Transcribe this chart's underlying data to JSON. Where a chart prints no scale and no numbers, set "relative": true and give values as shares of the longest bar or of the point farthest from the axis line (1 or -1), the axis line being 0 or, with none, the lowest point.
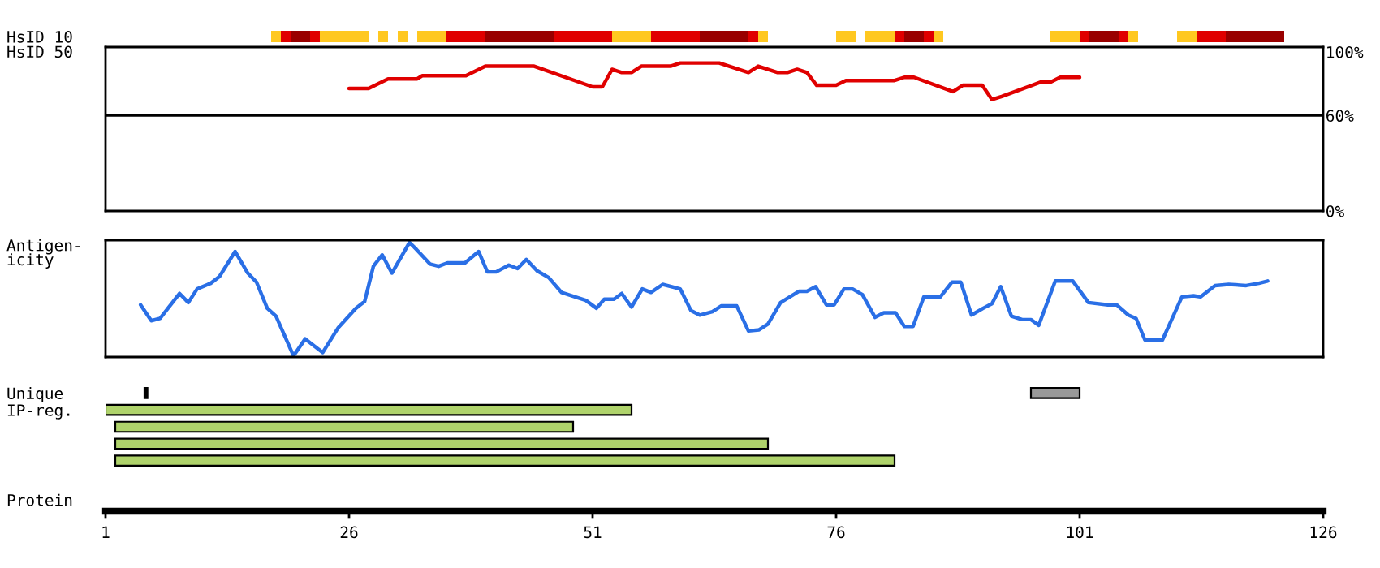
{
  "chart_data": [
    {
      "type": "bar",
      "orientation": "horizontal",
      "categories": [
        "HsID 10"
      ],
      "xlim": [
        1,
        126
      ],
      "tick_labels": "y",
      "series": [
        {
          "color": "#ffc820",
          "base": [
            18
          ],
          "values": [
            1
          ]
        },
        {
          "color": "#e00000",
          "base": [
            19
          ],
          "values": [
            1
          ]
        },
        {
          "color": "#990000",
          "base": [
            20
          ],
          "values": [
            2
          ]
        },
        {
          "color": "#e00000",
          "base": [
            22
          ],
          "values": [
            1
          ]
        },
        {
          "color": "#ffc820",
          "base": [
            23
          ],
          "values": [
            5
          ]
        },
        {
          "color": "#ffc820",
          "base": [
            29
          ],
          "values": [
            1
          ]
        },
        {
          "color": "#ffc820",
          "base": [
            31
          ],
          "values": [
            1
          ]
        },
        {
          "color": "#ffc820",
          "base": [
            33
          ],
          "values": [
            3
          ]
        },
        {
          "color": "#e00000",
          "base": [
            36
          ],
          "values": [
            4
          ]
        },
        {
          "color": "#990000",
          "base": [
            40
          ],
          "values": [
            7
          ]
        },
        {
          "color": "#e00000",
          "base": [
            47
          ],
          "values": [
            6
          ]
        },
        {
          "color": "#ffc820",
          "base": [
            53
          ],
          "values": [
            4
          ]
        },
        {
          "color": "#e00000",
          "base": [
            57
          ],
          "values": [
            5
          ]
        },
        {
          "color": "#990000",
          "base": [
            62
          ],
          "values": [
            5
          ]
        },
        {
          "color": "#e00000",
          "base": [
            67
          ],
          "values": [
            1
          ]
        },
        {
          "color": "#ffc820",
          "base": [
            68
          ],
          "values": [
            1
          ]
        },
        {
          "color": "#ffc820",
          "base": [
            76
          ],
          "values": [
            2
          ]
        },
        {
          "color": "#ffc820",
          "base": [
            79
          ],
          "values": [
            3
          ]
        },
        {
          "color": "#e00000",
          "base": [
            82
          ],
          "values": [
            1
          ]
        },
        {
          "color": "#990000",
          "base": [
            83
          ],
          "values": [
            2
          ]
        },
        {
          "color": "#e00000",
          "base": [
            85
          ],
          "values": [
            1
          ]
        },
        {
          "color": "#ffc820",
          "base": [
            86
          ],
          "values": [
            1
          ]
        },
        {
          "color": "#ffc820",
          "base": [
            98
          ],
          "values": [
            3
          ]
        },
        {
          "color": "#e00000",
          "base": [
            101
          ],
          "values": [
            1
          ]
        },
        {
          "color": "#990000",
          "base": [
            102
          ],
          "values": [
            3
          ]
        },
        {
          "color": "#e00000",
          "base": [
            105
          ],
          "values": [
            1
          ]
        },
        {
          "color": "#ffc820",
          "base": [
            106
          ],
          "values": [
            1
          ]
        },
        {
          "color": "#ffc820",
          "base": [
            111
          ],
          "values": [
            2
          ]
        },
        {
          "color": "#e00000",
          "base": [
            113
          ],
          "values": [
            3
          ]
        },
        {
          "color": "#990000",
          "base": [
            116
          ],
          "values": [
            6
          ]
        }
      ]
    },
    {
      "type": "line",
      "ylabel": "HsID 50",
      "xlim": [
        1,
        126
      ],
      "ylim": [
        0,
        103
      ],
      "yticks": [
        {
          "value": 0,
          "label": "0%"
        },
        {
          "value": 60,
          "label": "60%"
        },
        {
          "value": 100,
          "label": "100%"
        }
      ],
      "tick_labels": "y",
      "marker": "none",
      "line_style": "solid",
      "ref_lines": [
        {
          "axis": "y",
          "value": 60,
          "label": null,
          "color": "#000000"
        }
      ],
      "series": [
        {
          "color": "#e00000",
          "x": [
            26,
            28,
            30,
            33,
            33.5,
            38,
            40,
            45,
            51,
            52,
            53,
            54,
            55,
            56,
            59,
            60,
            64,
            67,
            68,
            70,
            71,
            72,
            73,
            74,
            76,
            77,
            82,
            83,
            84,
            88,
            89,
            91,
            92,
            93,
            97,
            98,
            99,
            101
          ],
          "values": [
            77,
            77,
            83,
            83,
            85,
            85,
            91,
            91,
            78,
            78,
            89,
            87,
            87,
            91,
            91,
            93,
            93,
            87,
            91,
            87,
            87,
            89,
            87,
            79,
            79,
            82,
            82,
            84,
            84,
            75,
            79,
            79,
            70,
            72,
            81,
            81,
            84,
            84
          ]
        }
      ]
    },
    {
      "type": "line",
      "ylabel": "Antigen-\nicity",
      "xlim": [
        1,
        126
      ],
      "relative": true,
      "tick_labels": false,
      "marker": "none",
      "line_style": "solid",
      "series": [
        {
          "color": "#2a6fe6",
          "x": [
            4.6,
            5.7,
            6.6,
            8.6,
            9.5,
            10.4,
            11.8,
            12.7,
            14.3,
            15.6,
            16.5,
            17.6,
            18.5,
            20.3,
            21.5,
            23.3,
            24.9,
            26.7,
            27.6,
            28.5,
            29.4,
            30.4,
            32.2,
            32.9,
            34.3,
            35.2,
            36.1,
            37.9,
            39.3,
            40.2,
            41.1,
            42.4,
            43.3,
            44.2,
            45.3,
            46.5,
            47.8,
            49.2,
            50.3,
            51.4,
            52.2,
            53.2,
            54.0,
            55.0,
            56.1,
            57.0,
            58.2,
            60.0,
            61.1,
            62.0,
            63.3,
            64.2,
            65.8,
            67.0,
            68.1,
            69.0,
            70.3,
            72.2,
            73.0,
            73.9,
            75.0,
            75.8,
            76.8,
            77.7,
            78.7,
            80.0,
            80.9,
            82.1,
            83.0,
            83.9,
            85.0,
            86.7,
            87.9,
            88.8,
            89.9,
            91.1,
            92.0,
            92.9,
            94.0,
            95.1,
            96.0,
            96.8,
            98.5,
            100.3,
            101.9,
            103.9,
            104.8,
            106.0,
            106.8,
            107.7,
            109.5,
            111.5,
            112.7,
            113.4,
            114.9,
            116.3,
            118.1,
            119.4,
            120.3
          ],
          "values": [
            0.45,
            0.31,
            0.33,
            0.55,
            0.47,
            0.59,
            0.64,
            0.7,
            0.92,
            0.73,
            0.65,
            0.42,
            0.35,
            0,
            0.15,
            0.03,
            0.25,
            0.42,
            0.48,
            0.79,
            0.89,
            0.73,
            1,
            0.94,
            0.81,
            0.79,
            0.82,
            0.82,
            0.92,
            0.74,
            0.74,
            0.8,
            0.77,
            0.85,
            0.75,
            0.69,
            0.56,
            0.52,
            0.49,
            0.42,
            0.5,
            0.5,
            0.55,
            0.43,
            0.59,
            0.56,
            0.63,
            0.59,
            0.4,
            0.36,
            0.39,
            0.44,
            0.44,
            0.22,
            0.23,
            0.28,
            0.47,
            0.57,
            0.57,
            0.61,
            0.45,
            0.45,
            0.59,
            0.59,
            0.54,
            0.34,
            0.38,
            0.38,
            0.26,
            0.26,
            0.52,
            0.52,
            0.65,
            0.65,
            0.36,
            0.42,
            0.46,
            0.61,
            0.35,
            0.32,
            0.32,
            0.27,
            0.66,
            0.66,
            0.47,
            0.45,
            0.45,
            0.36,
            0.33,
            0.14,
            0.14,
            0.52,
            0.53,
            0.52,
            0.62,
            0.63,
            0.62,
            0.64,
            0.66
          ]
        }
      ]
    },
    {
      "type": "bar",
      "orientation": "horizontal",
      "categories": [
        "Unique",
        "IP-reg.",
        null,
        null,
        null
      ],
      "xlabel": "Protein",
      "xlim": [
        1,
        126
      ],
      "xticks": [
        1,
        26,
        51,
        76,
        101,
        126
      ],
      "series": [
        {
          "color": "#000000",
          "base": [
            5,
            null,
            null,
            null,
            null
          ],
          "values": [
            0.3,
            null,
            null,
            null,
            null
          ]
        },
        {
          "color": "#999999",
          "base": [
            96,
            null,
            null,
            null,
            null
          ],
          "values": [
            5,
            null,
            null,
            null,
            null
          ]
        },
        {
          "color": "#afd36b",
          "base": [
            null,
            1,
            2,
            2,
            2
          ],
          "values": [
            null,
            54,
            47,
            67,
            80
          ]
        }
      ]
    }
  ]
}
